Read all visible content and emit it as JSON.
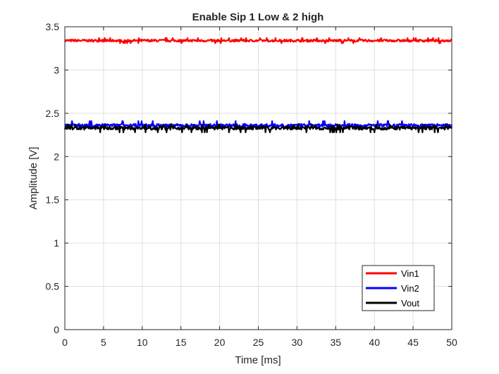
{
  "chart_data": {
    "type": "line",
    "title": "Enable Sip 1 Low & 2 high",
    "xlabel": "Time [ms]",
    "ylabel": "Amplitude [V]",
    "xlim": [
      0,
      50
    ],
    "ylim": [
      0,
      3.5
    ],
    "x_ticks": [
      "0",
      "5",
      "10",
      "15",
      "20",
      "25",
      "30",
      "35",
      "40",
      "45",
      "50"
    ],
    "y_ticks": [
      "0",
      "0.5",
      "1",
      "1.5",
      "2",
      "2.5",
      "3",
      "3.5"
    ],
    "grid": true,
    "legend_position": "bottom-right",
    "series": [
      {
        "name": "Vin1",
        "color": "#ff0000",
        "level": 3.34,
        "noise_band": [
          3.31,
          3.37
        ]
      },
      {
        "name": "Vin2",
        "color": "#0000ff",
        "level": 2.36,
        "noise_band": [
          2.33,
          2.41
        ]
      },
      {
        "name": "Vout",
        "color": "#000000",
        "level": 2.33,
        "noise_band": [
          2.28,
          2.37
        ]
      }
    ]
  }
}
